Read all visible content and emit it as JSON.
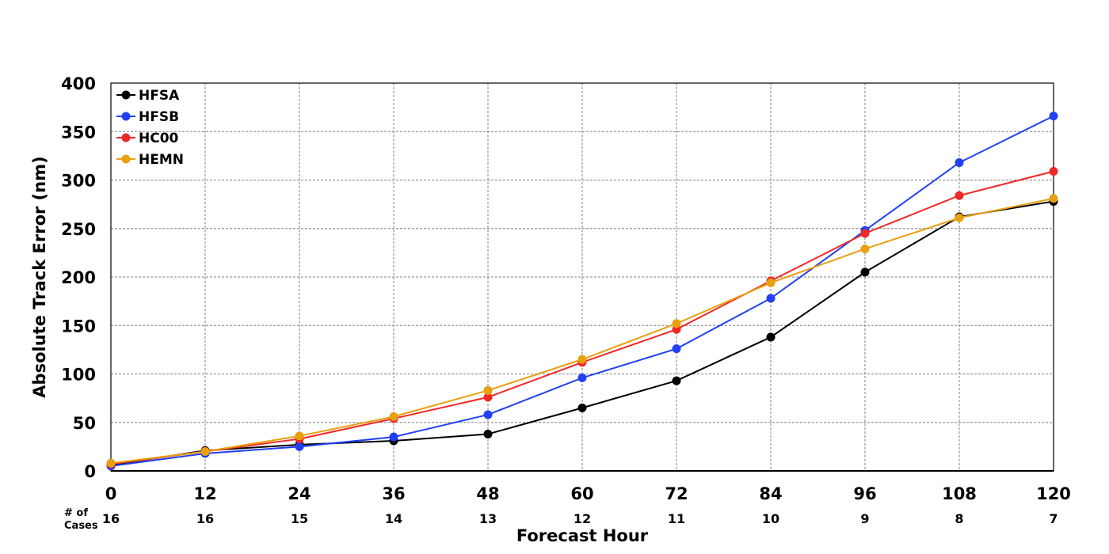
{
  "chart_data": {
    "type": "line",
    "title": "",
    "xlabel": "Forecast Hour",
    "ylabel": "Absolute Track Error (nm)",
    "x": [
      0,
      12,
      24,
      36,
      48,
      60,
      72,
      84,
      96,
      108,
      120
    ],
    "xlim": [
      0,
      120
    ],
    "ylim": [
      0,
      400
    ],
    "yticks": [
      0,
      50,
      100,
      150,
      200,
      250,
      300,
      350,
      400
    ],
    "grid": true,
    "legend_position": "top-left",
    "cases_label": [
      "# of",
      "Cases"
    ],
    "cases": [
      16,
      16,
      15,
      14,
      13,
      12,
      11,
      10,
      9,
      8,
      7
    ],
    "series": [
      {
        "name": "HFSA",
        "color": "#000000",
        "values": [
          6,
          21,
          27,
          31,
          38,
          65,
          93,
          138,
          205,
          262,
          278
        ]
      },
      {
        "name": "HFSB",
        "color": "#2140f5",
        "values": [
          5,
          18,
          25,
          35,
          58,
          96,
          126,
          178,
          248,
          318,
          366
        ]
      },
      {
        "name": "HC00",
        "color": "#f02828",
        "values": [
          7,
          20,
          33,
          54,
          76,
          112,
          146,
          196,
          245,
          284,
          309
        ]
      },
      {
        "name": "HEMN",
        "color": "#e8a010",
        "values": [
          8,
          20,
          36,
          56,
          83,
          115,
          152,
          194,
          229,
          261,
          281
        ]
      }
    ]
  }
}
